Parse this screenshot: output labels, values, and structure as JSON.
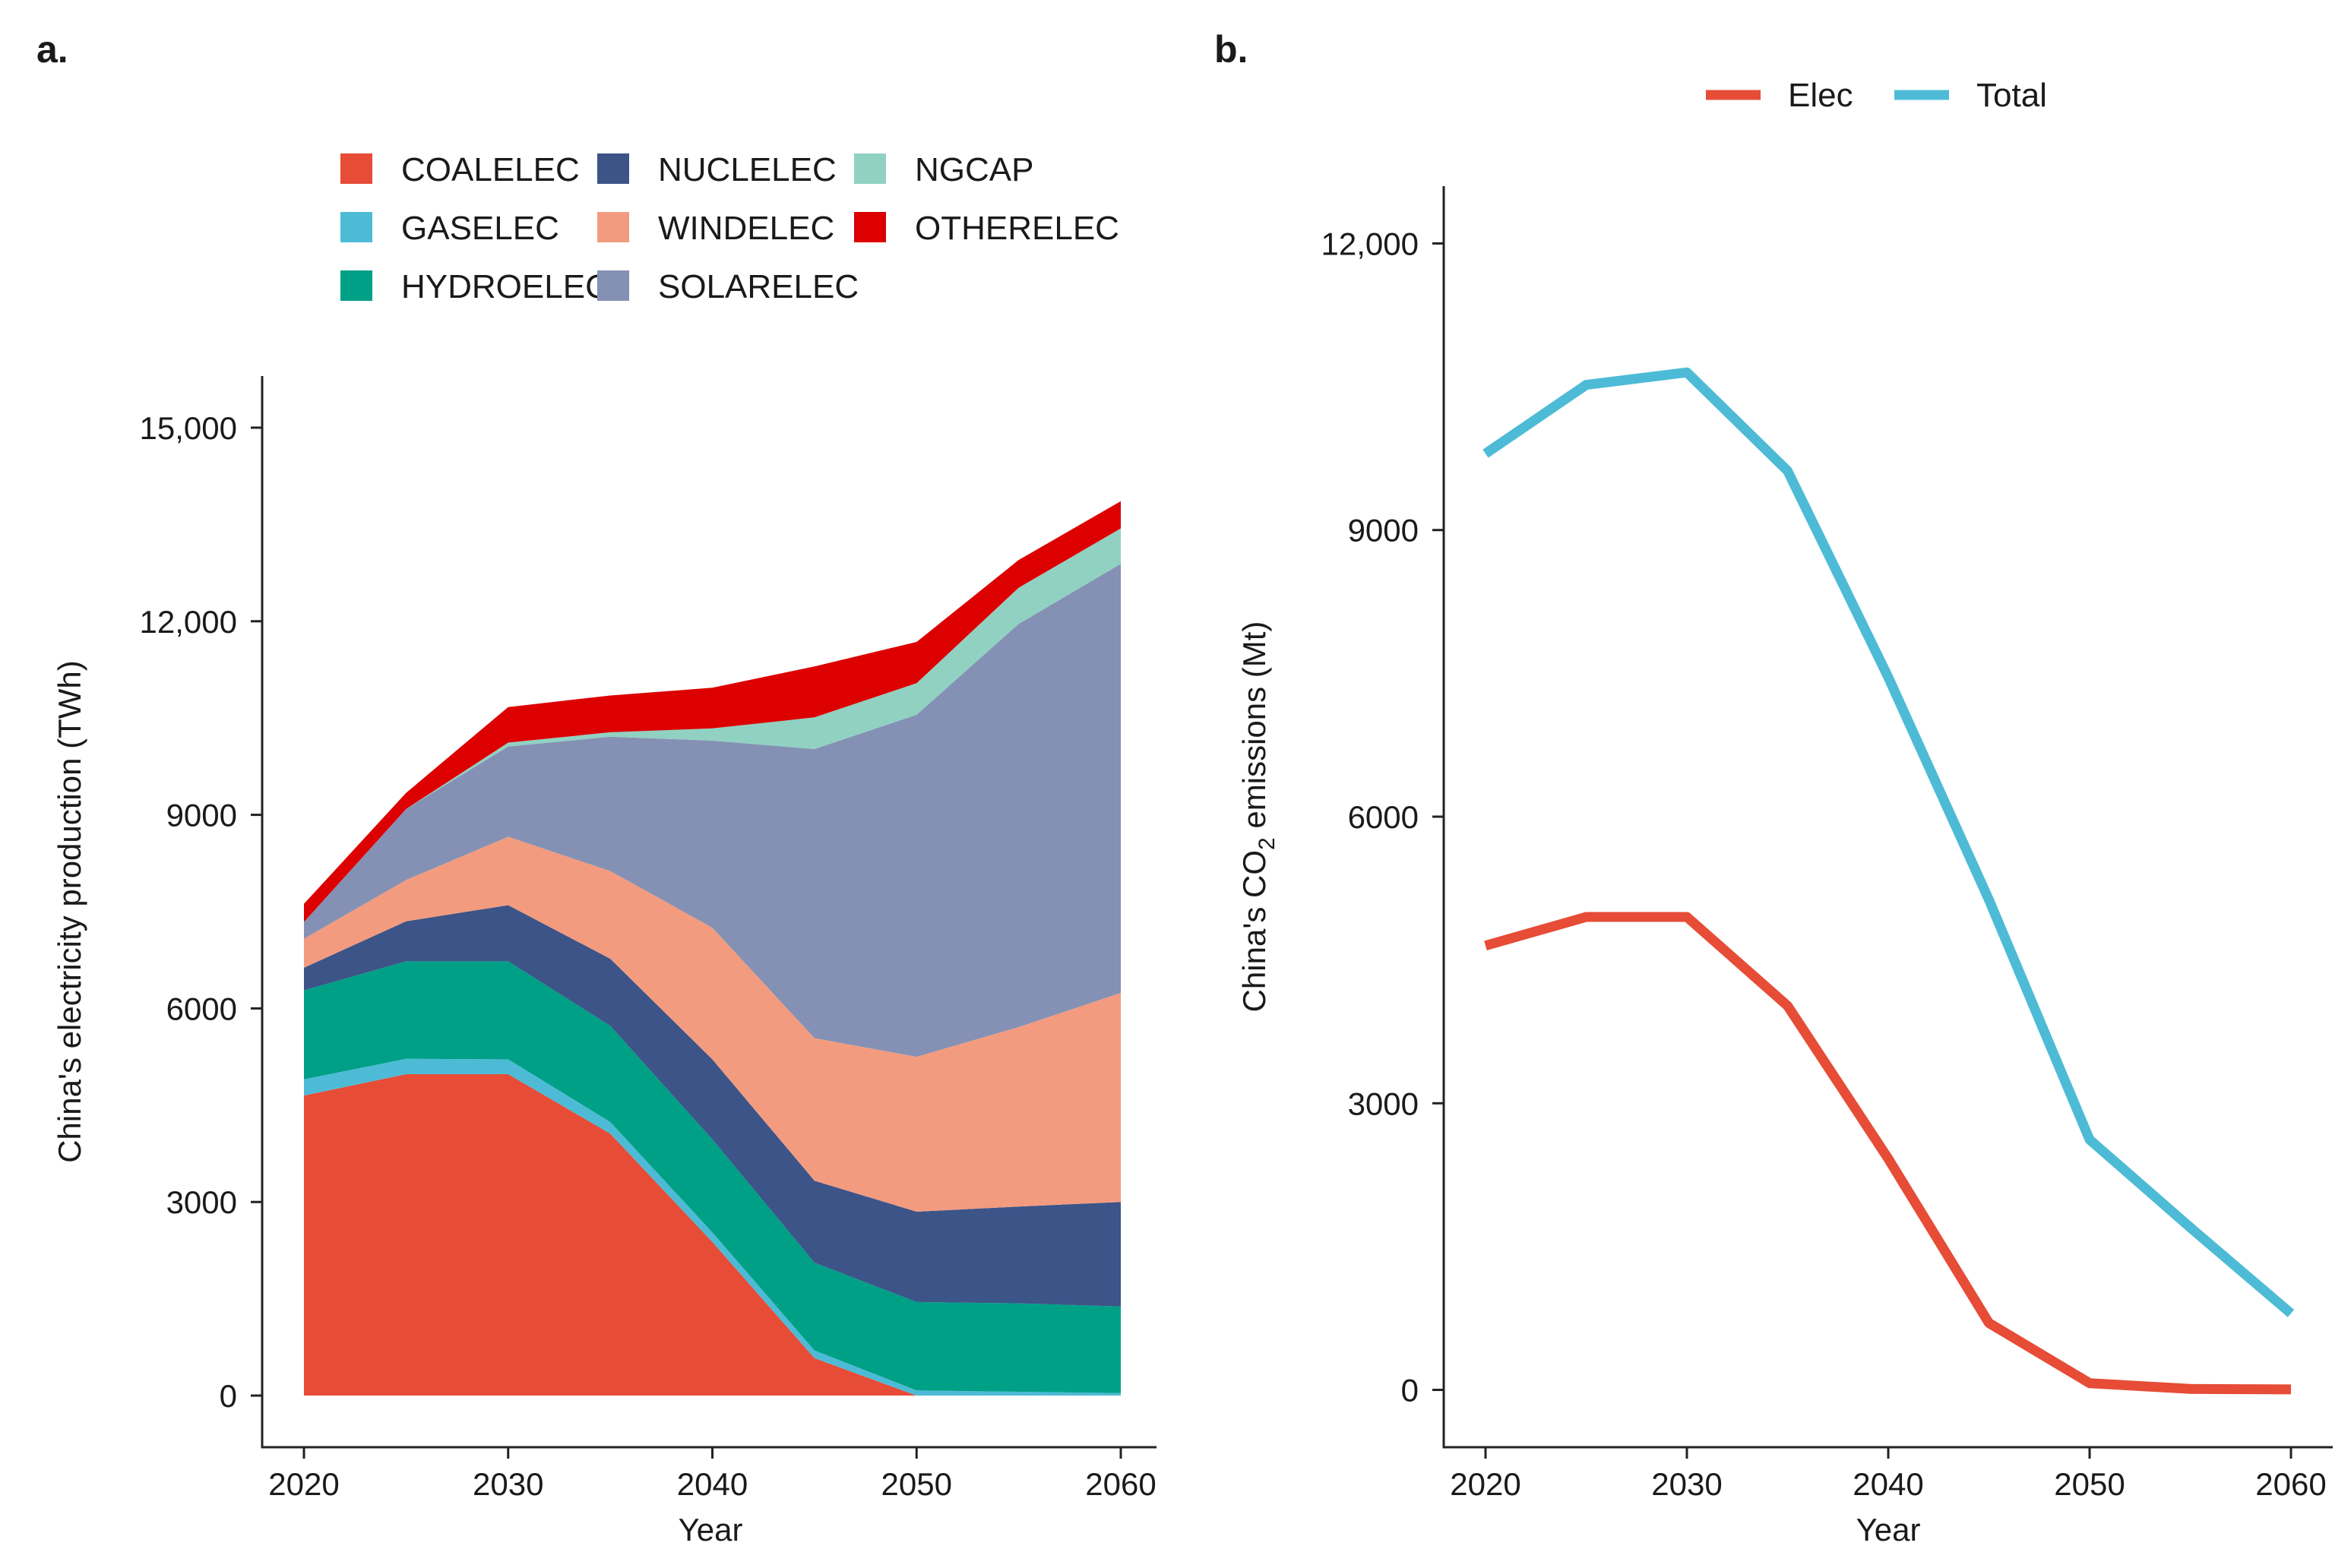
{
  "chart_data": [
    {
      "type": "area",
      "panel_label": "a.",
      "xlabel": "Year",
      "ylabel": "China's electricity production (TWh)",
      "x": [
        2020,
        2025,
        2030,
        2035,
        2040,
        2045,
        2050,
        2055,
        2060
      ],
      "xticks": [
        "2020",
        "2030",
        "2040",
        "2050",
        "2060"
      ],
      "yticks": [
        "0",
        "3000",
        "6000",
        "9000",
        "12,000",
        "15,000"
      ],
      "ylim": [
        -800,
        15800
      ],
      "stacked": true,
      "series": [
        {
          "name": "COALELEC",
          "color": "#E64C36",
          "values": [
            4650,
            4980,
            4980,
            4060,
            2380,
            580,
            0,
            0,
            0
          ]
        },
        {
          "name": "GASELEC",
          "color": "#4DBBD6",
          "values": [
            250,
            240,
            230,
            180,
            150,
            120,
            80,
            60,
            40
          ]
        },
        {
          "name": "HYDROELEC",
          "color": "#00A087",
          "values": [
            1380,
            1510,
            1520,
            1490,
            1440,
            1360,
            1370,
            1370,
            1340
          ]
        },
        {
          "name": "NUCLELEC",
          "color": "#3C5488",
          "values": [
            350,
            620,
            870,
            1040,
            1240,
            1270,
            1400,
            1500,
            1620
          ]
        },
        {
          "name": "WINDELEC",
          "color": "#F39B7F",
          "values": [
            450,
            640,
            1060,
            1360,
            2040,
            2210,
            2400,
            2780,
            3240
          ]
        },
        {
          "name": "SOLARELEC",
          "color": "#8491B4",
          "values": [
            260,
            1100,
            1400,
            2080,
            2900,
            4480,
            5300,
            6250,
            6650
          ]
        },
        {
          "name": "NGCAP",
          "color": "#91D1C2",
          "values": [
            0,
            0,
            60,
            70,
            190,
            490,
            490,
            560,
            550
          ]
        },
        {
          "name": "OTHERELEC",
          "color": "#DC0000",
          "values": [
            280,
            250,
            550,
            570,
            630,
            790,
            640,
            430,
            420
          ]
        }
      ]
    },
    {
      "type": "line",
      "panel_label": "b.",
      "xlabel": "Year",
      "ylabel_prefix": "China's CO",
      "ylabel_sub": "2",
      "ylabel_suffix": " emissions (Mt)",
      "x": [
        2020,
        2025,
        2030,
        2035,
        2040,
        2045,
        2050,
        2055,
        2060
      ],
      "xticks": [
        "2020",
        "2030",
        "2040",
        "2050",
        "2060"
      ],
      "yticks": [
        "0",
        "3000",
        "6000",
        "9000",
        "12,000"
      ],
      "ylim": [
        -600,
        12600
      ],
      "series": [
        {
          "name": "Elec",
          "color": "#E64C36",
          "values": [
            4650,
            4950,
            4950,
            4020,
            2420,
            700,
            70,
            10,
            5
          ]
        },
        {
          "name": "Total",
          "color": "#4DBBD6",
          "values": [
            9800,
            10520,
            10650,
            9620,
            7460,
            5130,
            2620,
            1700,
            800
          ]
        }
      ]
    }
  ]
}
